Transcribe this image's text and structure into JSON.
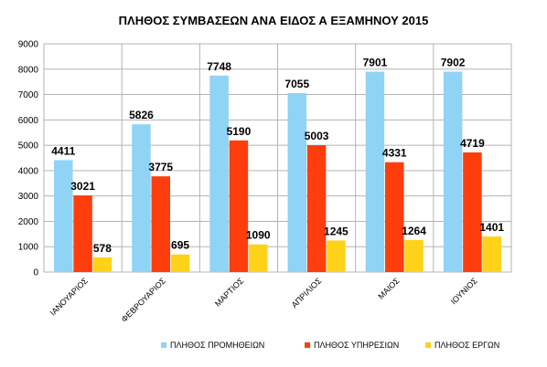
{
  "chart_data": {
    "type": "bar",
    "title": "ΠΛΗΘΟΣ ΣΥΜΒΑΣΕΩΝ ΑΝΑ ΕΙΔΟΣ Α ΕΞΑΜΗΝΟΥ 2015",
    "categories": [
      "ΙΑΝΟΥΑΡΙΟΣ",
      "ΦΕΒΡΟΥΑΡΙΟΣ",
      "ΜΑΡΤΙΟΣ",
      "ΑΠΡΙΛΙΟΣ",
      "ΜΑΙΟΣ",
      "ΙΟΥΝΙΟΣ"
    ],
    "series": [
      {
        "name": "ΠΛΗΘΟΣ ΠΡΟΜΗΘΕΙΩΝ",
        "color": "#8fd3f5",
        "values": [
          4411,
          5826,
          7748,
          7055,
          7901,
          7902
        ]
      },
      {
        "name": "ΠΛΗΘΟΣ ΥΠΗΡΕΣΙΩΝ",
        "color": "#ff3d0d",
        "values": [
          3021,
          3775,
          5190,
          5003,
          4331,
          4719
        ]
      },
      {
        "name": "ΠΛΗΘΟΣ ΕΡΓΩΝ",
        "color": "#ffd21a",
        "values": [
          578,
          695,
          1090,
          1245,
          1264,
          1401
        ]
      }
    ],
    "yticks": [
      "0",
      "1000",
      "2000",
      "3000",
      "4000",
      "5000",
      "6000",
      "7000",
      "8000",
      "9000"
    ],
    "ylim": [
      0,
      9000
    ],
    "grid": true,
    "legend_position": "bottom"
  }
}
